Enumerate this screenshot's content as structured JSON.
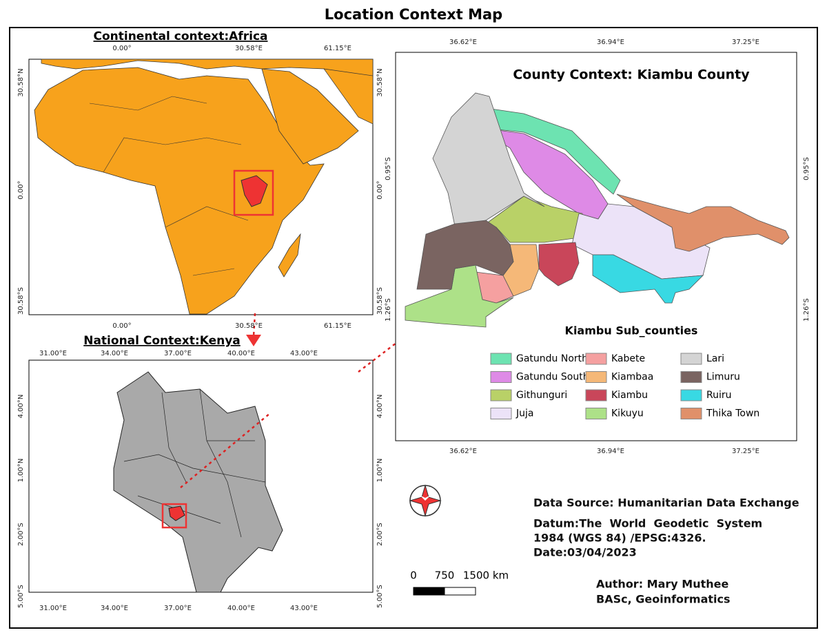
{
  "title": "Location Context Map",
  "africa": {
    "title": "Continental context:Africa",
    "lon_labels": [
      "0.00°",
      "30.58°E",
      "61.15°E"
    ],
    "lat_labels": [
      "30.58°N",
      "0.00°",
      "30.58°S"
    ]
  },
  "kenya": {
    "title": "National Context:Kenya",
    "lon_labels": [
      "31.00°E",
      "34.00°E",
      "37.00°E",
      "40.00°E",
      "43.00°E"
    ],
    "lat_labels": [
      "4.00°N",
      "1.00°N",
      "2.00°S",
      "5.00°S"
    ]
  },
  "county": {
    "title": "County Context: Kiambu County",
    "lon_labels": [
      "36.62°E",
      "36.94°E",
      "37.25°E"
    ],
    "lat_labels": [
      "0.95°S",
      "1.26°S"
    ],
    "legend_title": "Kiambu Sub_counties",
    "legend": [
      {
        "name": "Gatundu North",
        "color": "#6de3b1"
      },
      {
        "name": "Gatundu South",
        "color": "#de8ae6"
      },
      {
        "name": "Githunguri",
        "color": "#b9d167"
      },
      {
        "name": "Juja",
        "color": "#ece3f8"
      },
      {
        "name": "Kabete",
        "color": "#f5a0a0"
      },
      {
        "name": "Kiambaa",
        "color": "#f5b878"
      },
      {
        "name": "Kiambu",
        "color": "#c9465a"
      },
      {
        "name": "Kikuyu",
        "color": "#ade188"
      },
      {
        "name": "Lari",
        "color": "#d4d4d4"
      },
      {
        "name": "Limuru",
        "color": "#7a6461"
      },
      {
        "name": "Ruiru",
        "color": "#38d9e3"
      },
      {
        "name": "Thika Town",
        "color": "#e0906a"
      }
    ]
  },
  "scale": {
    "labels": [
      "0",
      "750",
      "1500 km"
    ]
  },
  "info": {
    "source": "Data Source: Humanitarian Data Exchange",
    "datum_line1": "Datum:The  World  Geodetic  System",
    "datum_line2": "1984 (WGS 84) /EPSG:4326.",
    "date": "Date:03/04/2023",
    "author": "Author: Mary Muthee",
    "affiliation": "BASc, Geoinformatics"
  }
}
